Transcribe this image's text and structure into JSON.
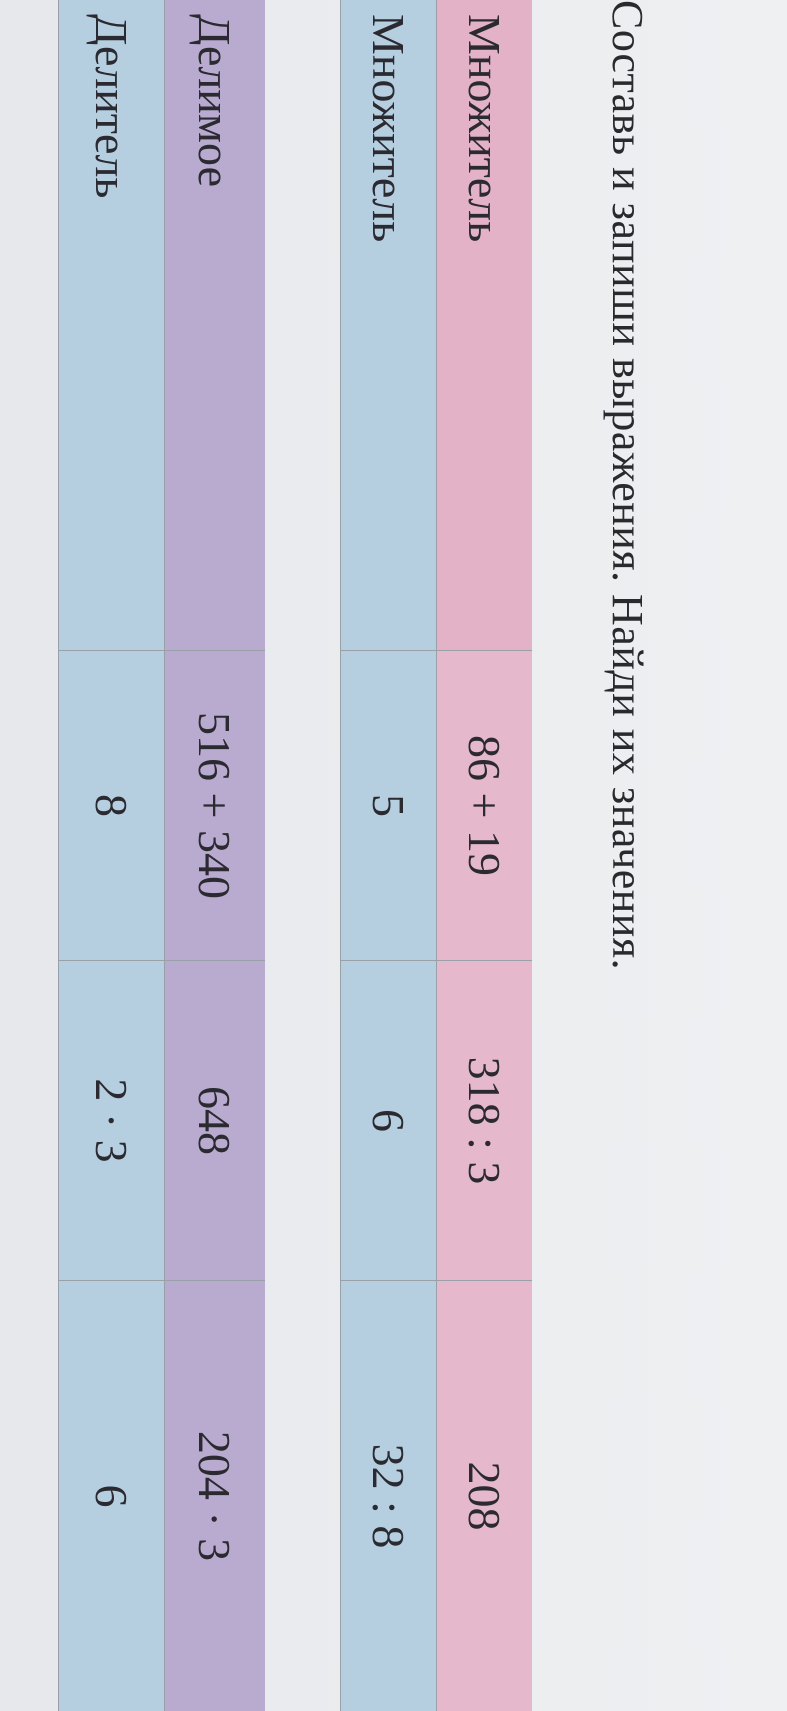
{
  "title": "Составь и запиши выражения. Найди их значения.",
  "table1": {
    "rows": [
      {
        "header": "Множитель",
        "cells": [
          "86 + 19",
          "318 : 3",
          "208"
        ],
        "color": "#e5b8cb"
      },
      {
        "header": "Множитель",
        "cells": [
          "5",
          "6",
          "32 : 8"
        ],
        "color": "#b5cfe1"
      }
    ]
  },
  "table2": {
    "rows": [
      {
        "header": "Делимое",
        "cells": [
          "516 + 340",
          "648",
          "204 · 3"
        ],
        "color": "#b9aad0"
      },
      {
        "header": "Делитель",
        "cells": [
          "8",
          "2 · 3",
          "6"
        ],
        "color": "#b5cfe1"
      }
    ]
  }
}
